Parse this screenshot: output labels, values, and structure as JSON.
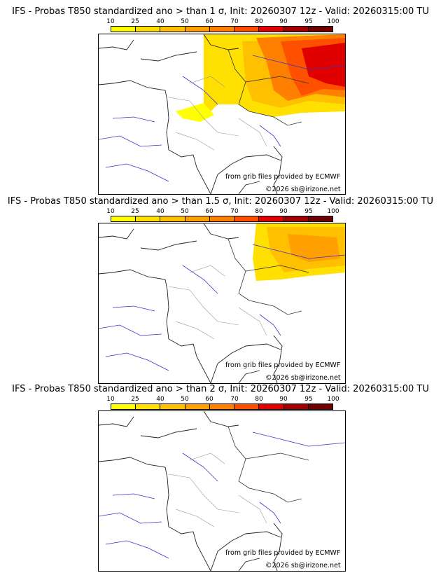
{
  "panels": [
    {
      "title": "IFS - Probas T850  standardized ano > than 1 σ, Init: 20260307 12z - Valid: 20260315:00 TU",
      "credit_source": "from grib files provided by ECMWF",
      "credit_copyright": "©2026 sb@irizone.net",
      "probability_coverage": "high"
    },
    {
      "title": "IFS - Probas T850  standardized ano > than 1.5 σ, Init: 20260307 12z - Valid: 20260315:00 TU",
      "credit_source": "from grib files provided by ECMWF",
      "credit_copyright": "©2026 sb@irizone.net",
      "probability_coverage": "medium"
    },
    {
      "title": "IFS - Probas T850  standardized ano > than 2 σ, Init: 20260307 12z - Valid: 20260315:00 TU",
      "credit_source": "from grib files provided by ECMWF",
      "credit_copyright": "©2026 sb@irizone.net",
      "probability_coverage": "none"
    }
  ],
  "legend": {
    "labels": [
      "10",
      "25",
      "40",
      "50",
      "60",
      "70",
      "80",
      "90",
      "95",
      "100"
    ],
    "colors": [
      "#ffff00",
      "#ffe000",
      "#ffc000",
      "#ffa000",
      "#ff8000",
      "#ff5000",
      "#e00000",
      "#a00000",
      "#700000"
    ]
  }
}
